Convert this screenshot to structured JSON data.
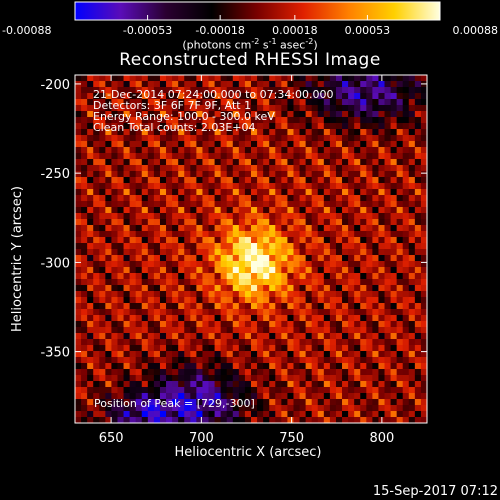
{
  "chart_data": {
    "type": "heatmap",
    "title": "Reconstructed RHESSI Image",
    "xlabel": "Heliocentric X (arcsec)",
    "ylabel": "Heliocentric Y (arcsec)",
    "xlim": [
      630,
      825
    ],
    "ylim": [
      -390,
      -195
    ],
    "x_ticks": [
      650,
      700,
      750,
      800
    ],
    "y_ticks": [
      -200,
      -250,
      -300,
      -350
    ],
    "colorbar": {
      "ticks": [
        "-0.00088",
        "-0.00053",
        "-0.00018",
        "0.00018",
        "0.00053",
        "0.00088"
      ],
      "min": -0.00088,
      "max": 0.00088,
      "unit_text": "(photons cm",
      "unit_sup1": "-2",
      "unit_mid1": " s",
      "unit_sup2": "-1",
      "unit_mid2": " asec",
      "unit_sup3": "-2",
      "unit_end": ")"
    },
    "colormap": [
      "#0000ff",
      "#5a0cb8",
      "#2a0030",
      "#000000",
      "#7a0000",
      "#e02000",
      "#ff8000",
      "#ffd000",
      "#ffffe0"
    ],
    "peak": [
      729,
      -300
    ],
    "annotations": {
      "time": "21-Dec-2014 07:24:00.000 to 07:34:00.000",
      "detectors": "Detectors: 3F 6F 7F 9F, Att 1",
      "energy": "Energy Range: 100.0 - 300.0 keV",
      "method": "Clean    Total counts: 2.03E+04",
      "peak_label": "Position of Peak = [729,-300]"
    },
    "grid": false
  },
  "footer": {
    "timestamp": "15-Sep-2017 07:12"
  }
}
